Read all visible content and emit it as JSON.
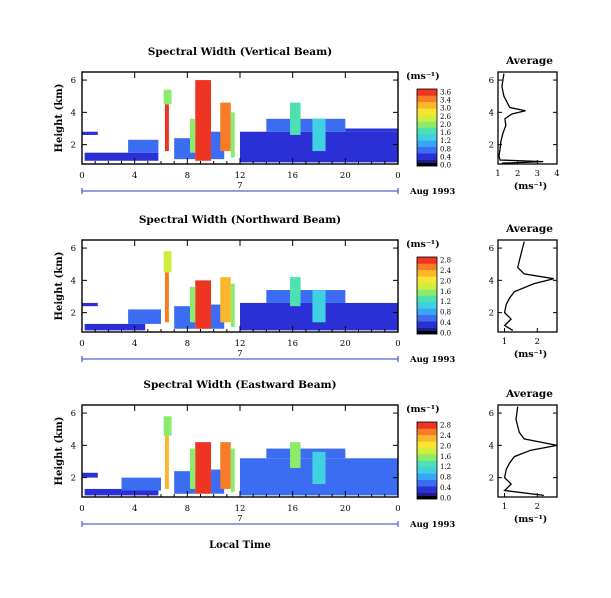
{
  "colorscale": [
    "#1c1c8c",
    "#2a2fd6",
    "#3b6cf2",
    "#3aa5f5",
    "#3fd0e2",
    "#4fe0b0",
    "#8ceb6a",
    "#d2ee3c",
    "#f7e532",
    "#fbb72c",
    "#f77c26",
    "#ee3522"
  ],
  "footer": {
    "xlabel": "Local Time"
  },
  "chart_data": [
    {
      "type": "heatmap",
      "title": "Spectral Width (Vertical Beam)",
      "ylabel": "Height (km)",
      "y_ticks": [
        "2",
        "4",
        "6"
      ],
      "ylim": [
        0.8,
        6.5
      ],
      "x_ticks": [
        "0",
        "4",
        "8",
        "12",
        "16",
        "20",
        "0"
      ],
      "xlim": [
        0,
        24
      ],
      "date_label": "7",
      "date_suffix": "Aug 1993",
      "colorbar": {
        "unit": "(ms⁻¹)",
        "ticks": [
          "3.6",
          "3.4",
          "3.0",
          "2.6",
          "2.0",
          "1.6",
          "1.2",
          "0.8",
          "0.4",
          "0.0"
        ],
        "max": 3.6
      },
      "cells": [
        {
          "t": [
            0.2,
            5.8
          ],
          "h": [
            1.0,
            1.5
          ],
          "v": 0.5
        },
        {
          "t": [
            0.0,
            1.2
          ],
          "h": [
            2.6,
            2.8
          ],
          "v": 0.3
        },
        {
          "t": [
            3.5,
            5.8
          ],
          "h": [
            1.5,
            2.3
          ],
          "v": 0.6
        },
        {
          "t": [
            6.3,
            6.6
          ],
          "h": [
            1.6,
            4.5
          ],
          "v": 3.4
        },
        {
          "t": [
            6.2,
            6.8
          ],
          "h": [
            4.5,
            5.4
          ],
          "v": 2.0
        },
        {
          "t": [
            7.0,
            8.6
          ],
          "h": [
            1.1,
            2.4
          ],
          "v": 0.6
        },
        {
          "t": [
            8.6,
            9.8
          ],
          "h": [
            1.0,
            6.0
          ],
          "v": 3.5
        },
        {
          "t": [
            8.2,
            8.6
          ],
          "h": [
            1.5,
            3.6
          ],
          "v": 2.0
        },
        {
          "t": [
            9.8,
            10.8
          ],
          "h": [
            1.1,
            2.8
          ],
          "v": 0.6
        },
        {
          "t": [
            10.5,
            11.3
          ],
          "h": [
            1.6,
            4.6
          ],
          "v": 3.0
        },
        {
          "t": [
            11.3,
            11.6
          ],
          "h": [
            1.2,
            4.0
          ],
          "v": 2.0
        },
        {
          "t": [
            12.0,
            24.0
          ],
          "h": [
            0.9,
            2.8
          ],
          "v": 0.4
        },
        {
          "t": [
            14.0,
            20.0
          ],
          "h": [
            2.8,
            3.6
          ],
          "v": 0.7
        },
        {
          "t": [
            15.8,
            16.6
          ],
          "h": [
            2.6,
            4.6
          ],
          "v": 1.7
        },
        {
          "t": [
            17.5,
            18.5
          ],
          "h": [
            1.6,
            3.6
          ],
          "v": 1.3
        },
        {
          "t": [
            20.0,
            24.0
          ],
          "h": [
            2.8,
            3.0
          ],
          "v": 0.3
        }
      ],
      "profile": {
        "title": "Average",
        "x_ticks": [
          "1",
          "2",
          "3",
          "4"
        ],
        "xlim": [
          1,
          4
        ],
        "xlabel": "(ms⁻¹)",
        "y_ticks": [
          "2",
          "4",
          "6"
        ],
        "ylim": [
          0.8,
          6.5
        ],
        "x": [
          1.3,
          1.25,
          1.2,
          1.3,
          1.6,
          2.4,
          1.7,
          1.35,
          1.4,
          1.25,
          1.15,
          1.1,
          1.05,
          1.1,
          3.3,
          1.2
        ],
        "y": [
          6.4,
          6.0,
          5.6,
          5.0,
          4.3,
          4.1,
          3.9,
          3.6,
          3.2,
          2.7,
          2.2,
          1.7,
          1.3,
          1.05,
          0.95,
          0.85
        ]
      }
    },
    {
      "type": "heatmap",
      "title": "Spectral Width (Northward Beam)",
      "ylabel": "Height (km)",
      "y_ticks": [
        "2",
        "4",
        "6"
      ],
      "ylim": [
        0.8,
        6.5
      ],
      "x_ticks": [
        "0",
        "4",
        "8",
        "12",
        "16",
        "20",
        "0"
      ],
      "xlim": [
        0,
        24
      ],
      "date_label": "7",
      "date_suffix": "Aug 1993",
      "colorbar": {
        "unit": "(ms⁻¹)",
        "ticks": [
          "2.8",
          "2.4",
          "2.0",
          "1.6",
          "1.2",
          "0.8",
          "0.4",
          "0.0"
        ],
        "max": 2.8
      },
      "cells": [
        {
          "t": [
            0.2,
            4.8
          ],
          "h": [
            0.9,
            1.3
          ],
          "v": 0.4
        },
        {
          "t": [
            0.0,
            1.2
          ],
          "h": [
            2.4,
            2.6
          ],
          "v": 0.3
        },
        {
          "t": [
            3.5,
            6.0
          ],
          "h": [
            1.3,
            2.2
          ],
          "v": 0.6
        },
        {
          "t": [
            6.3,
            6.6
          ],
          "h": [
            1.4,
            4.5
          ],
          "v": 2.4
        },
        {
          "t": [
            6.2,
            6.8
          ],
          "h": [
            4.5,
            5.8
          ],
          "v": 1.7
        },
        {
          "t": [
            7.0,
            8.6
          ],
          "h": [
            1.0,
            2.4
          ],
          "v": 0.5
        },
        {
          "t": [
            8.6,
            9.8
          ],
          "h": [
            1.0,
            4.0
          ],
          "v": 2.7
        },
        {
          "t": [
            8.2,
            8.6
          ],
          "h": [
            1.4,
            3.6
          ],
          "v": 1.4
        },
        {
          "t": [
            9.8,
            10.8
          ],
          "h": [
            1.0,
            2.5
          ],
          "v": 0.5
        },
        {
          "t": [
            10.5,
            11.3
          ],
          "h": [
            1.4,
            4.2
          ],
          "v": 2.2
        },
        {
          "t": [
            11.3,
            11.6
          ],
          "h": [
            1.1,
            3.8
          ],
          "v": 1.4
        },
        {
          "t": [
            12.0,
            24.0
          ],
          "h": [
            0.9,
            2.6
          ],
          "v": 0.4
        },
        {
          "t": [
            14.0,
            20.0
          ],
          "h": [
            2.6,
            3.4
          ],
          "v": 0.6
        },
        {
          "t": [
            15.8,
            16.6
          ],
          "h": [
            2.4,
            4.2
          ],
          "v": 1.3
        },
        {
          "t": [
            17.5,
            18.5
          ],
          "h": [
            1.4,
            3.4
          ],
          "v": 1.0
        }
      ],
      "profile": {
        "title": "Average",
        "x_ticks": [
          "1",
          "2"
        ],
        "xlim": [
          0.8,
          2.6
        ],
        "xlabel": "(ms⁻¹)",
        "y_ticks": [
          "2",
          "4",
          "6"
        ],
        "ylim": [
          0.8,
          6.5
        ],
        "x": [
          1.6,
          1.5,
          1.4,
          1.6,
          2.5,
          1.9,
          1.3,
          1.15,
          1.05,
          1.0,
          1.2,
          1.0,
          1.25
        ],
        "y": [
          6.4,
          5.6,
          4.8,
          4.4,
          4.1,
          3.8,
          3.3,
          2.9,
          2.5,
          2.0,
          1.6,
          1.2,
          0.9
        ]
      }
    },
    {
      "type": "heatmap",
      "title": "Spectral Width (Eastward Beam)",
      "ylabel": "Height (km)",
      "y_ticks": [
        "2",
        "4",
        "6"
      ],
      "ylim": [
        0.8,
        6.5
      ],
      "x_ticks": [
        "0",
        "4",
        "8",
        "12",
        "16",
        "20",
        "0"
      ],
      "xlim": [
        0,
        24
      ],
      "date_label": "7",
      "date_suffix": "Aug 1993",
      "colorbar": {
        "unit": "(ms⁻¹)",
        "ticks": [
          "2.8",
          "2.4",
          "2.0",
          "1.6",
          "1.2",
          "0.8",
          "0.4",
          "0.0"
        ],
        "max": 2.8
      },
      "cells": [
        {
          "t": [
            0.2,
            5.8
          ],
          "h": [
            0.9,
            1.3
          ],
          "v": 0.4
        },
        {
          "t": [
            0.0,
            1.2
          ],
          "h": [
            2.0,
            2.3
          ],
          "v": 0.3
        },
        {
          "t": [
            3.0,
            6.0
          ],
          "h": [
            1.2,
            2.0
          ],
          "v": 0.6
        },
        {
          "t": [
            6.3,
            6.6
          ],
          "h": [
            1.3,
            4.6
          ],
          "v": 2.3
        },
        {
          "t": [
            6.2,
            6.8
          ],
          "h": [
            4.6,
            5.8
          ],
          "v": 1.5
        },
        {
          "t": [
            7.0,
            8.6
          ],
          "h": [
            1.0,
            2.4
          ],
          "v": 0.5
        },
        {
          "t": [
            8.6,
            9.8
          ],
          "h": [
            1.0,
            4.2
          ],
          "v": 2.7
        },
        {
          "t": [
            8.2,
            8.6
          ],
          "h": [
            1.3,
            3.8
          ],
          "v": 1.4
        },
        {
          "t": [
            9.8,
            10.8
          ],
          "h": [
            1.0,
            2.5
          ],
          "v": 0.5
        },
        {
          "t": [
            10.5,
            11.3
          ],
          "h": [
            1.3,
            4.2
          ],
          "v": 2.4
        },
        {
          "t": [
            11.3,
            11.6
          ],
          "h": [
            1.1,
            3.8
          ],
          "v": 1.4
        },
        {
          "t": [
            12.0,
            24.0
          ],
          "h": [
            0.9,
            3.2
          ],
          "v": 0.5
        },
        {
          "t": [
            14.0,
            20.0
          ],
          "h": [
            3.2,
            3.8
          ],
          "v": 0.6
        },
        {
          "t": [
            15.8,
            16.6
          ],
          "h": [
            2.6,
            4.2
          ],
          "v": 1.5
        },
        {
          "t": [
            17.5,
            18.5
          ],
          "h": [
            1.6,
            3.6
          ],
          "v": 1.1
        }
      ],
      "profile": {
        "title": "Average",
        "x_ticks": [
          "1",
          "2"
        ],
        "xlim": [
          0.8,
          2.6
        ],
        "xlabel": "(ms⁻¹)",
        "y_ticks": [
          "2",
          "4",
          "6"
        ],
        "ylim": [
          0.8,
          6.5
        ],
        "x": [
          1.4,
          1.35,
          1.45,
          1.6,
          2.6,
          1.8,
          1.3,
          1.15,
          1.05,
          1.0,
          1.2,
          1.0,
          2.2
        ],
        "y": [
          6.4,
          5.6,
          4.8,
          4.4,
          4.0,
          3.7,
          3.3,
          2.9,
          2.5,
          2.0,
          1.6,
          1.2,
          0.9
        ]
      }
    }
  ]
}
